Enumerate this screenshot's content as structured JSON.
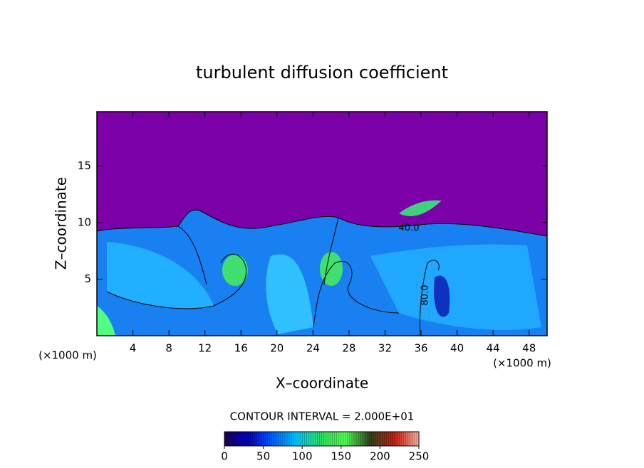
{
  "chart_data": {
    "type": "contour",
    "title": "turbulent diffusion coefficient",
    "xlabel": "X–coordinate",
    "ylabel": "Z–coordinate",
    "x_unit_label": "(×1000 m)",
    "y_unit_label": "(×1000 m)",
    "xlim": [
      0,
      50
    ],
    "xticks": [
      4,
      8,
      12,
      16,
      20,
      24,
      28,
      32,
      36,
      40,
      44,
      48
    ],
    "ylim": [
      0,
      19.8
    ],
    "yticks": [
      5,
      10,
      15
    ],
    "contour_interval_label": "CONTOUR INTERVAL = 2.000E+01",
    "contour_labels": [
      "40.0",
      "80.0"
    ],
    "colorbar": {
      "lim": [
        0,
        250
      ],
      "ticks": [
        0,
        50,
        100,
        150,
        200,
        250
      ],
      "colormap": [
        "#1a0050",
        "#0000c8",
        "#0060ff",
        "#00c8ff",
        "#30e060",
        "#50ff50",
        "#304020",
        "#c02010",
        "#ffb0a0"
      ]
    }
  }
}
